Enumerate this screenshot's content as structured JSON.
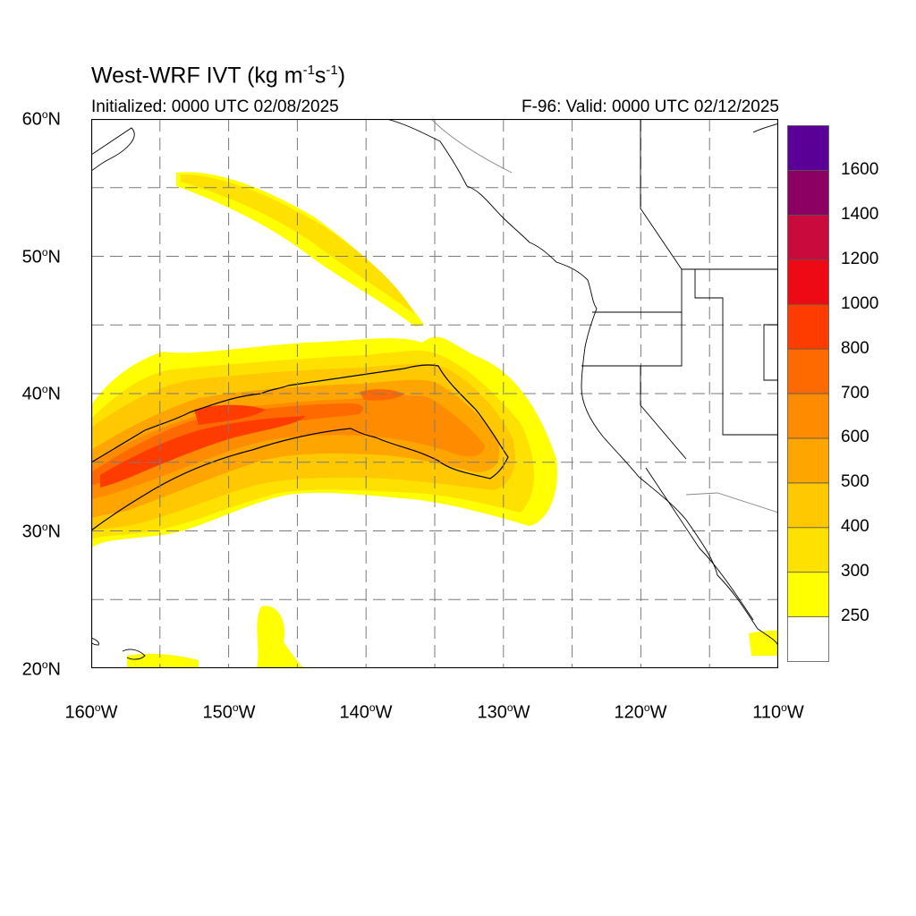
{
  "title": {
    "prefix": "West-WRF IVT (kg m",
    "exp1": "-1",
    "mid": "s",
    "exp2": "-1",
    "suffix": ")"
  },
  "subtitle_left": "Initialized: 0000 UTC 02/08/2025",
  "subtitle_right": "F-96: Valid: 0000 UTC 02/12/2025",
  "lat_axis": [
    {
      "deg": "60",
      "hemi": "N"
    },
    {
      "deg": "50",
      "hemi": "N"
    },
    {
      "deg": "40",
      "hemi": "N"
    },
    {
      "deg": "30",
      "hemi": "N"
    },
    {
      "deg": "20",
      "hemi": "N"
    }
  ],
  "lon_axis": [
    {
      "deg": "160",
      "hemi": "W"
    },
    {
      "deg": "150",
      "hemi": "W"
    },
    {
      "deg": "140",
      "hemi": "W"
    },
    {
      "deg": "130",
      "hemi": "W"
    },
    {
      "deg": "120",
      "hemi": "W"
    },
    {
      "deg": "110",
      "hemi": "W"
    }
  ],
  "map_extent": {
    "lon": [
      -160,
      -110
    ],
    "lat": [
      20,
      60
    ]
  },
  "colorbar": {
    "levels": [
      "250",
      "300",
      "400",
      "500",
      "600",
      "700",
      "800",
      "1000",
      "1200",
      "1400",
      "1600"
    ],
    "colors": [
      "#ffffff",
      "#ffff00",
      "#ffe100",
      "#ffc800",
      "#ffa500",
      "#ff8c00",
      "#ff6a00",
      "#ff3c00",
      "#ee0a14",
      "#c80a3c",
      "#8c0064",
      "#5a0096"
    ]
  },
  "colors": {
    "frame": "#000000",
    "grid": "#7a7a7a",
    "coast": "#000000",
    "contour": "#000000"
  }
}
